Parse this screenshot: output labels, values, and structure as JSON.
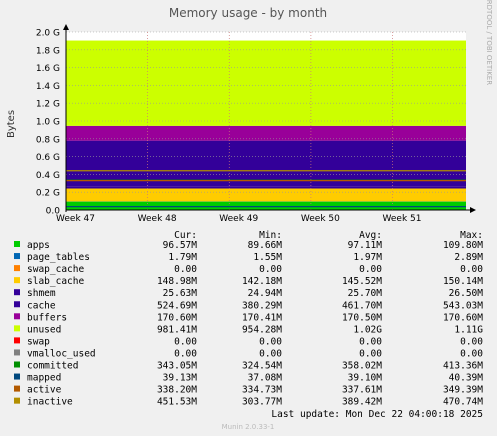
{
  "chart_data": {
    "type": "area",
    "title": "Memory usage - by month",
    "ylabel": "Bytes",
    "side_label": "RRDTOOL / TOBI OETIKER",
    "ylim": [
      0,
      2.0
    ],
    "yunit": "G",
    "yticks": [
      "0.0",
      "0.2 G",
      "0.4 G",
      "0.6 G",
      "0.8 G",
      "1.0 G",
      "1.2 G",
      "1.4 G",
      "1.6 G",
      "1.8 G",
      "2.0 G"
    ],
    "xticks": [
      "Week 47",
      "Week 48",
      "Week 49",
      "Week 50",
      "Week 51"
    ],
    "grid": true,
    "series": [
      {
        "name": "apps",
        "color": "#00cc00",
        "cur": "96.57M",
        "min": "89.66M",
        "avg": "97.11M",
        "max": "109.80M"
      },
      {
        "name": "page_tables",
        "color": "#0066b3",
        "cur": "1.79M",
        "min": "1.55M",
        "avg": "1.97M",
        "max": "2.89M"
      },
      {
        "name": "swap_cache",
        "color": "#ff8000",
        "cur": "0.00",
        "min": "0.00",
        "avg": "0.00",
        "max": "0.00"
      },
      {
        "name": "slab_cache",
        "color": "#ffcc00",
        "cur": "148.98M",
        "min": "142.18M",
        "avg": "145.52M",
        "max": "150.14M"
      },
      {
        "name": "shmem",
        "color": "#330099",
        "cur": "25.63M",
        "min": "24.94M",
        "avg": "25.70M",
        "max": "26.50M"
      },
      {
        "name": "cache",
        "color": "#330099",
        "cur": "524.69M",
        "min": "380.29M",
        "avg": "461.70M",
        "max": "543.03M"
      },
      {
        "name": "buffers",
        "color": "#990099",
        "cur": "170.60M",
        "min": "170.41M",
        "avg": "170.50M",
        "max": "170.60M"
      },
      {
        "name": "unused",
        "color": "#ccff00",
        "cur": "981.41M",
        "min": "954.28M",
        "avg": "1.02G",
        "max": "1.11G"
      },
      {
        "name": "swap",
        "color": "#ff0000",
        "cur": "0.00",
        "min": "0.00",
        "avg": "0.00",
        "max": "0.00"
      },
      {
        "name": "vmalloc_used",
        "color": "#808080",
        "cur": "0.00",
        "min": "0.00",
        "avg": "0.00",
        "max": "0.00"
      },
      {
        "name": "committed",
        "color": "#008f00",
        "cur": "343.05M",
        "min": "324.54M",
        "avg": "358.02M",
        "max": "413.36M"
      },
      {
        "name": "mapped",
        "color": "#00487d",
        "cur": "39.13M",
        "min": "37.08M",
        "avg": "39.10M",
        "max": "40.39M"
      },
      {
        "name": "active",
        "color": "#b35a00",
        "cur": "338.20M",
        "min": "334.73M",
        "avg": "337.61M",
        "max": "349.39M"
      },
      {
        "name": "inactive",
        "color": "#b38f00",
        "cur": "451.53M",
        "min": "303.77M",
        "avg": "389.42M",
        "max": "470.74M"
      }
    ]
  },
  "legend_headers": {
    "cur": "Cur:",
    "min": "Min:",
    "avg": "Avg:",
    "max": "Max:"
  },
  "last_update": "Last update:  Mon Dec 22 04:00:18 2025",
  "footer": "Munin 2.0.33-1"
}
